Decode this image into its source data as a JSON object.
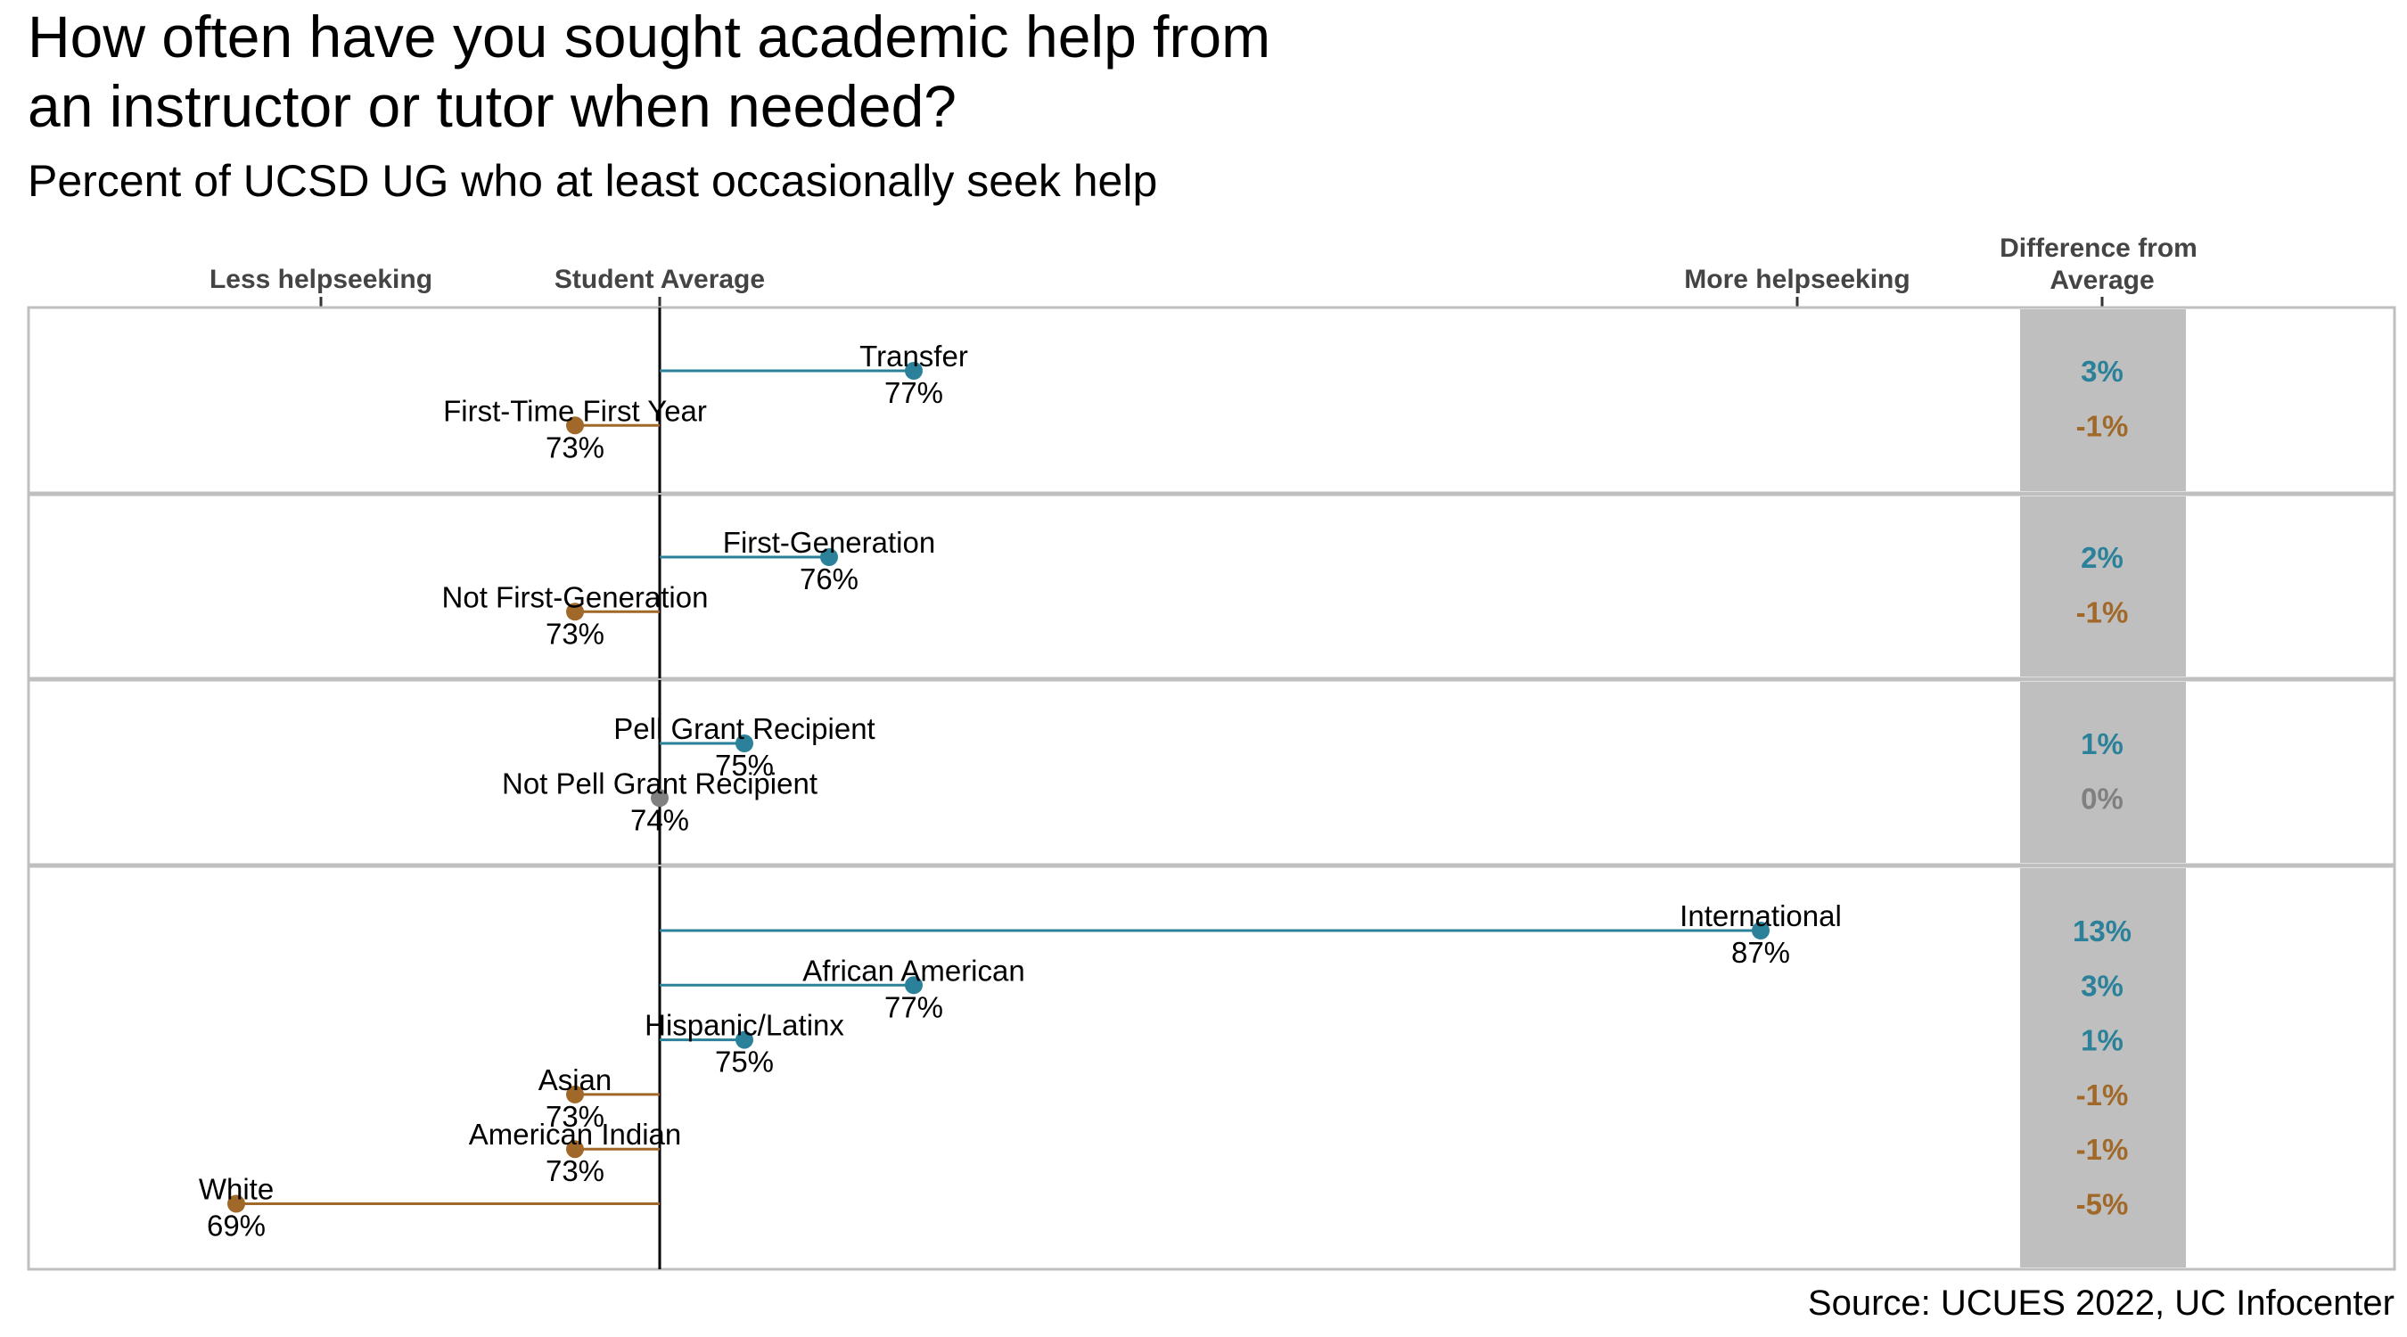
{
  "title_line1": "How often have you sought academic help from",
  "title_line2": "an instructor or tutor when needed?",
  "subtitle": "Percent of UCSD UG who at least occasionally seek help",
  "axis_labels": {
    "less": "Less helpseeking",
    "average": "Student Average",
    "more": "More helpseeking",
    "diff_header_line1": "Difference from",
    "diff_header_line2": "Average"
  },
  "source": "Source: UCUES 2022, UC Infocenter",
  "colors": {
    "above": "#2a8199",
    "below": "#a0692a",
    "equal": "#808080",
    "panel_border": "#bfbfbf",
    "diff_column": "#bfbfbf",
    "average_line": "#000000"
  },
  "chart_data": {
    "type": "lollipop",
    "average": 74,
    "xlim": [
      66,
      93
    ],
    "panels": [
      {
        "items": [
          {
            "label": "Transfer",
            "value": 77,
            "value_label": "77%",
            "diff_label": "3%"
          },
          {
            "label": "First-Time First Year",
            "value": 73,
            "value_label": "73%",
            "diff_label": "-1%"
          }
        ]
      },
      {
        "items": [
          {
            "label": "First-Generation",
            "value": 76,
            "value_label": "76%",
            "diff_label": "2%"
          },
          {
            "label": "Not First-Generation",
            "value": 73,
            "value_label": "73%",
            "diff_label": "-1%"
          }
        ]
      },
      {
        "items": [
          {
            "label": "Pell Grant Recipient",
            "value": 75,
            "value_label": "75%",
            "diff_label": "1%"
          },
          {
            "label": "Not Pell Grant Recipient",
            "value": 74,
            "value_label": "74%",
            "diff_label": "0%"
          }
        ]
      },
      {
        "items": [
          {
            "label": "International",
            "value": 87,
            "value_label": "87%",
            "diff_label": "13%"
          },
          {
            "label": "African American",
            "value": 77,
            "value_label": "77%",
            "diff_label": "3%"
          },
          {
            "label": "Hispanic/Latinx",
            "value": 75,
            "value_label": "75%",
            "diff_label": "1%"
          },
          {
            "label": "Asian",
            "value": 73,
            "value_label": "73%",
            "diff_label": "-1%"
          },
          {
            "label": "American Indian",
            "value": 73,
            "value_label": "73%",
            "diff_label": "-1%"
          },
          {
            "label": "White",
            "value": 69,
            "value_label": "69%",
            "diff_label": "-5%"
          }
        ]
      }
    ]
  }
}
